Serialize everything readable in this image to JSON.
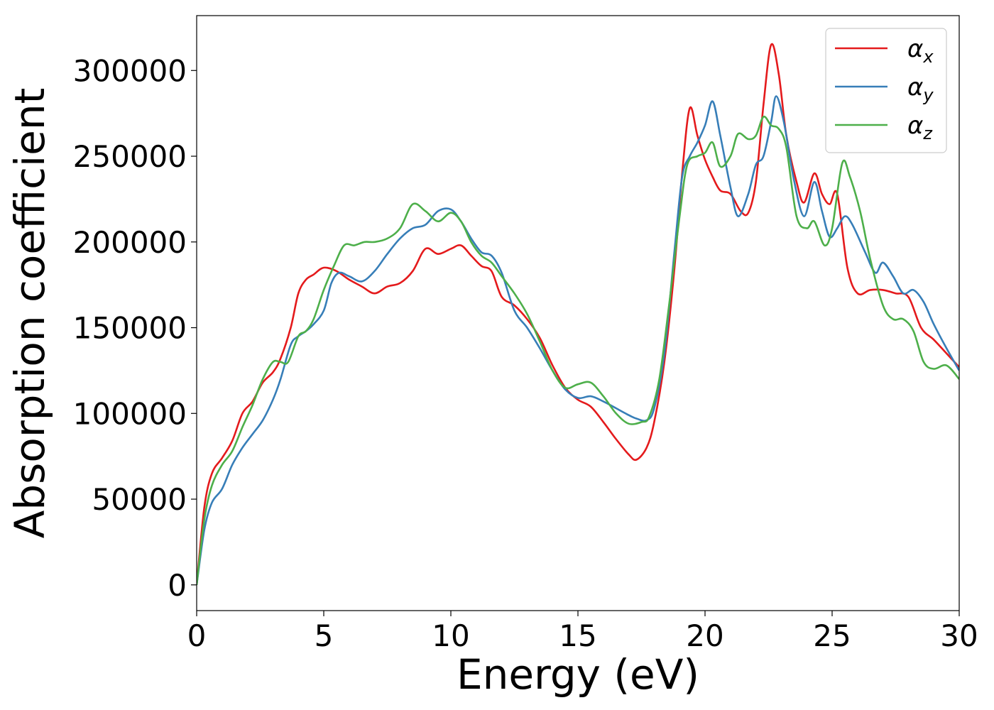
{
  "chart_data": {
    "type": "line",
    "xlabel": "Energy (eV)",
    "ylabel": "Absorption coefficient",
    "xlim": [
      0,
      30
    ],
    "ylim": [
      -15000,
      332000
    ],
    "xticks": [
      0,
      5,
      10,
      15,
      20,
      25,
      30
    ],
    "yticks": [
      0,
      50000,
      100000,
      150000,
      200000,
      250000,
      300000
    ],
    "grid": false,
    "legend_position": "top-right",
    "series": [
      {
        "name": "α_x",
        "symbol": "α",
        "subscript": "x",
        "color": "#e41a1c",
        "points": [
          [
            0,
            0
          ],
          [
            0.3,
            45000
          ],
          [
            0.6,
            65000
          ],
          [
            1.0,
            74000
          ],
          [
            1.4,
            84000
          ],
          [
            1.8,
            100000
          ],
          [
            2.2,
            107000
          ],
          [
            2.6,
            118000
          ],
          [
            3.0,
            124000
          ],
          [
            3.3,
            132000
          ],
          [
            3.7,
            150000
          ],
          [
            4.0,
            170000
          ],
          [
            4.3,
            178000
          ],
          [
            4.6,
            181000
          ],
          [
            5.0,
            185000
          ],
          [
            5.5,
            183000
          ],
          [
            6.0,
            178000
          ],
          [
            6.5,
            174000
          ],
          [
            7.0,
            170000
          ],
          [
            7.5,
            174000
          ],
          [
            8.0,
            176000
          ],
          [
            8.5,
            183000
          ],
          [
            9.0,
            196000
          ],
          [
            9.5,
            193000
          ],
          [
            10.0,
            196000
          ],
          [
            10.4,
            198000
          ],
          [
            10.8,
            192000
          ],
          [
            11.2,
            186000
          ],
          [
            11.6,
            183000
          ],
          [
            12.0,
            168000
          ],
          [
            12.5,
            163000
          ],
          [
            13.0,
            155000
          ],
          [
            13.5,
            144000
          ],
          [
            14.0,
            128000
          ],
          [
            14.5,
            115000
          ],
          [
            15.0,
            108000
          ],
          [
            15.5,
            104000
          ],
          [
            16.0,
            95000
          ],
          [
            16.5,
            85000
          ],
          [
            17.0,
            76000
          ],
          [
            17.3,
            73000
          ],
          [
            17.7,
            80000
          ],
          [
            18.0,
            95000
          ],
          [
            18.4,
            130000
          ],
          [
            18.8,
            185000
          ],
          [
            19.1,
            240000
          ],
          [
            19.4,
            278000
          ],
          [
            19.7,
            262000
          ],
          [
            20.0,
            248000
          ],
          [
            20.3,
            238000
          ],
          [
            20.6,
            230000
          ],
          [
            21.0,
            228000
          ],
          [
            21.4,
            218000
          ],
          [
            21.7,
            217000
          ],
          [
            22.0,
            235000
          ],
          [
            22.3,
            280000
          ],
          [
            22.6,
            315000
          ],
          [
            22.9,
            298000
          ],
          [
            23.2,
            262000
          ],
          [
            23.6,
            235000
          ],
          [
            23.9,
            223000
          ],
          [
            24.3,
            240000
          ],
          [
            24.6,
            228000
          ],
          [
            24.9,
            222000
          ],
          [
            25.2,
            228000
          ],
          [
            25.6,
            185000
          ],
          [
            26.0,
            170000
          ],
          [
            26.5,
            172000
          ],
          [
            27.0,
            172000
          ],
          [
            27.5,
            170000
          ],
          [
            28.0,
            168000
          ],
          [
            28.5,
            150000
          ],
          [
            29.0,
            143000
          ],
          [
            29.5,
            135000
          ],
          [
            30.0,
            127000
          ]
        ]
      },
      {
        "name": "α_y",
        "symbol": "α",
        "subscript": "y",
        "color": "#377eb8",
        "points": [
          [
            0,
            0
          ],
          [
            0.3,
            32000
          ],
          [
            0.6,
            48000
          ],
          [
            1.0,
            56000
          ],
          [
            1.4,
            70000
          ],
          [
            1.8,
            80000
          ],
          [
            2.2,
            88000
          ],
          [
            2.6,
            96000
          ],
          [
            3.0,
            108000
          ],
          [
            3.3,
            120000
          ],
          [
            3.7,
            140000
          ],
          [
            4.0,
            145000
          ],
          [
            4.3,
            148000
          ],
          [
            4.6,
            152000
          ],
          [
            5.0,
            160000
          ],
          [
            5.3,
            176000
          ],
          [
            5.6,
            182000
          ],
          [
            6.0,
            180000
          ],
          [
            6.5,
            177000
          ],
          [
            7.0,
            183000
          ],
          [
            7.5,
            193000
          ],
          [
            8.0,
            202000
          ],
          [
            8.5,
            208000
          ],
          [
            9.0,
            210000
          ],
          [
            9.5,
            218000
          ],
          [
            10.0,
            219000
          ],
          [
            10.4,
            212000
          ],
          [
            10.8,
            202000
          ],
          [
            11.2,
            194000
          ],
          [
            11.6,
            192000
          ],
          [
            12.0,
            182000
          ],
          [
            12.5,
            160000
          ],
          [
            13.0,
            150000
          ],
          [
            13.5,
            138000
          ],
          [
            14.0,
            125000
          ],
          [
            14.5,
            114000
          ],
          [
            15.0,
            109000
          ],
          [
            15.5,
            110000
          ],
          [
            16.0,
            107000
          ],
          [
            16.5,
            103000
          ],
          [
            17.0,
            99000
          ],
          [
            17.3,
            97000
          ],
          [
            17.7,
            96000
          ],
          [
            18.0,
            103000
          ],
          [
            18.4,
            135000
          ],
          [
            18.8,
            195000
          ],
          [
            19.1,
            238000
          ],
          [
            19.4,
            250000
          ],
          [
            19.7,
            258000
          ],
          [
            20.0,
            268000
          ],
          [
            20.3,
            282000
          ],
          [
            20.6,
            262000
          ],
          [
            21.0,
            232000
          ],
          [
            21.3,
            215000
          ],
          [
            21.7,
            228000
          ],
          [
            22.0,
            245000
          ],
          [
            22.3,
            250000
          ],
          [
            22.6,
            270000
          ],
          [
            22.8,
            285000
          ],
          [
            23.1,
            270000
          ],
          [
            23.5,
            236000
          ],
          [
            23.9,
            215000
          ],
          [
            24.3,
            235000
          ],
          [
            24.6,
            218000
          ],
          [
            24.9,
            203000
          ],
          [
            25.2,
            208000
          ],
          [
            25.5,
            215000
          ],
          [
            25.8,
            210000
          ],
          [
            26.3,
            194000
          ],
          [
            26.7,
            182000
          ],
          [
            27.0,
            188000
          ],
          [
            27.4,
            180000
          ],
          [
            27.8,
            170000
          ],
          [
            28.2,
            172000
          ],
          [
            28.6,
            165000
          ],
          [
            29.0,
            152000
          ],
          [
            29.5,
            138000
          ],
          [
            30.0,
            125000
          ]
        ]
      },
      {
        "name": "α_z",
        "symbol": "α",
        "subscript": "z",
        "color": "#4daf4a",
        "points": [
          [
            0,
            0
          ],
          [
            0.3,
            38000
          ],
          [
            0.6,
            58000
          ],
          [
            1.0,
            70000
          ],
          [
            1.4,
            78000
          ],
          [
            1.8,
            92000
          ],
          [
            2.2,
            105000
          ],
          [
            2.6,
            120000
          ],
          [
            3.0,
            130000
          ],
          [
            3.3,
            130000
          ],
          [
            3.6,
            130000
          ],
          [
            4.0,
            145000
          ],
          [
            4.3,
            148000
          ],
          [
            4.6,
            155000
          ],
          [
            5.0,
            172000
          ],
          [
            5.4,
            186000
          ],
          [
            5.8,
            198000
          ],
          [
            6.2,
            198000
          ],
          [
            6.6,
            200000
          ],
          [
            7.0,
            200000
          ],
          [
            7.5,
            202000
          ],
          [
            8.0,
            208000
          ],
          [
            8.5,
            222000
          ],
          [
            9.0,
            218000
          ],
          [
            9.5,
            212000
          ],
          [
            10.0,
            217000
          ],
          [
            10.4,
            212000
          ],
          [
            10.8,
            200000
          ],
          [
            11.2,
            192000
          ],
          [
            11.6,
            188000
          ],
          [
            12.0,
            180000
          ],
          [
            12.5,
            170000
          ],
          [
            13.0,
            158000
          ],
          [
            13.5,
            142000
          ],
          [
            14.0,
            125000
          ],
          [
            14.5,
            115000
          ],
          [
            15.0,
            117000
          ],
          [
            15.5,
            118000
          ],
          [
            16.0,
            110000
          ],
          [
            16.5,
            100000
          ],
          [
            17.0,
            94000
          ],
          [
            17.5,
            95000
          ],
          [
            17.8,
            98000
          ],
          [
            18.2,
            120000
          ],
          [
            18.6,
            165000
          ],
          [
            19.0,
            215000
          ],
          [
            19.3,
            245000
          ],
          [
            19.7,
            250000
          ],
          [
            20.0,
            252000
          ],
          [
            20.3,
            258000
          ],
          [
            20.6,
            244000
          ],
          [
            21.0,
            250000
          ],
          [
            21.3,
            263000
          ],
          [
            21.7,
            260000
          ],
          [
            22.0,
            262000
          ],
          [
            22.3,
            273000
          ],
          [
            22.6,
            268000
          ],
          [
            22.9,
            266000
          ],
          [
            23.2,
            255000
          ],
          [
            23.6,
            215000
          ],
          [
            24.0,
            208000
          ],
          [
            24.3,
            212000
          ],
          [
            24.7,
            198000
          ],
          [
            25.0,
            208000
          ],
          [
            25.4,
            246000
          ],
          [
            25.7,
            238000
          ],
          [
            26.1,
            218000
          ],
          [
            26.5,
            190000
          ],
          [
            27.0,
            163000
          ],
          [
            27.4,
            155000
          ],
          [
            27.8,
            155000
          ],
          [
            28.2,
            148000
          ],
          [
            28.6,
            130000
          ],
          [
            29.0,
            126000
          ],
          [
            29.5,
            128000
          ],
          [
            30.0,
            120000
          ]
        ]
      }
    ]
  }
}
